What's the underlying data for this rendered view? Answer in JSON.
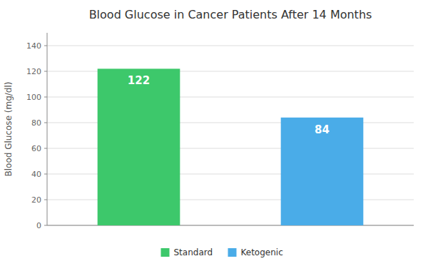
{
  "chart_data": {
    "type": "bar",
    "title": "Blood Glucose in Cancer Patients After 14 Months",
    "ylabel": "Blood Glucose (mg/dl)",
    "categories": [
      "Standard",
      "Ketogenic"
    ],
    "values": [
      122,
      84
    ],
    "colors": [
      "#3DC86B",
      "#4AACE8"
    ],
    "ylim": [
      0,
      150
    ],
    "yticks": [
      0,
      20,
      40,
      60,
      80,
      100,
      120,
      140
    ],
    "grid": true,
    "tick_labels": "y",
    "data_labels": true,
    "legend": "bottom"
  }
}
